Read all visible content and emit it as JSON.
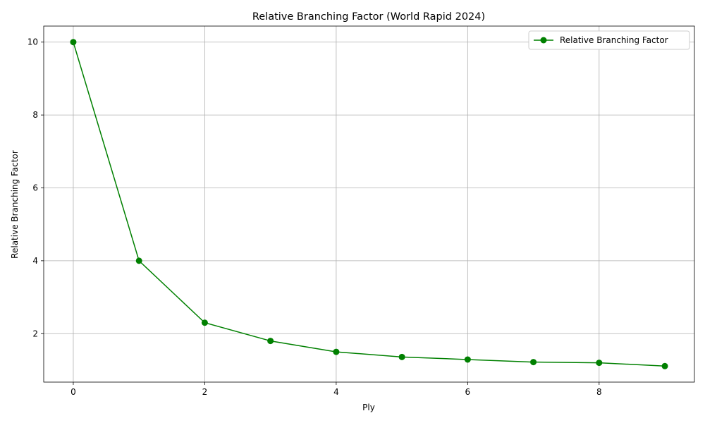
{
  "chart_data": {
    "type": "line",
    "title": "Relative Branching Factor (World Rapid 2024)",
    "xlabel": "Ply",
    "ylabel": "Relative Branching Factor",
    "x": [
      0,
      1,
      2,
      3,
      4,
      5,
      6,
      7,
      8,
      9
    ],
    "series": [
      {
        "name": "Relative Branching Factor",
        "values": [
          10.0,
          4.0,
          2.3,
          1.8,
          1.5,
          1.36,
          1.29,
          1.22,
          1.2,
          1.11
        ],
        "color": "#008000",
        "marker": "circle"
      }
    ],
    "xlim": [
      -0.45,
      9.45
    ],
    "ylim": [
      0.67,
      10.44
    ],
    "xticks": [
      0,
      2,
      4,
      6,
      8
    ],
    "yticks": [
      2,
      4,
      6,
      8,
      10
    ],
    "xtick_labels": [
      "0",
      "2",
      "4",
      "6",
      "8"
    ],
    "ytick_labels": [
      "2",
      "4",
      "6",
      "8",
      "10"
    ],
    "grid": true,
    "legend_position": "top-right"
  }
}
